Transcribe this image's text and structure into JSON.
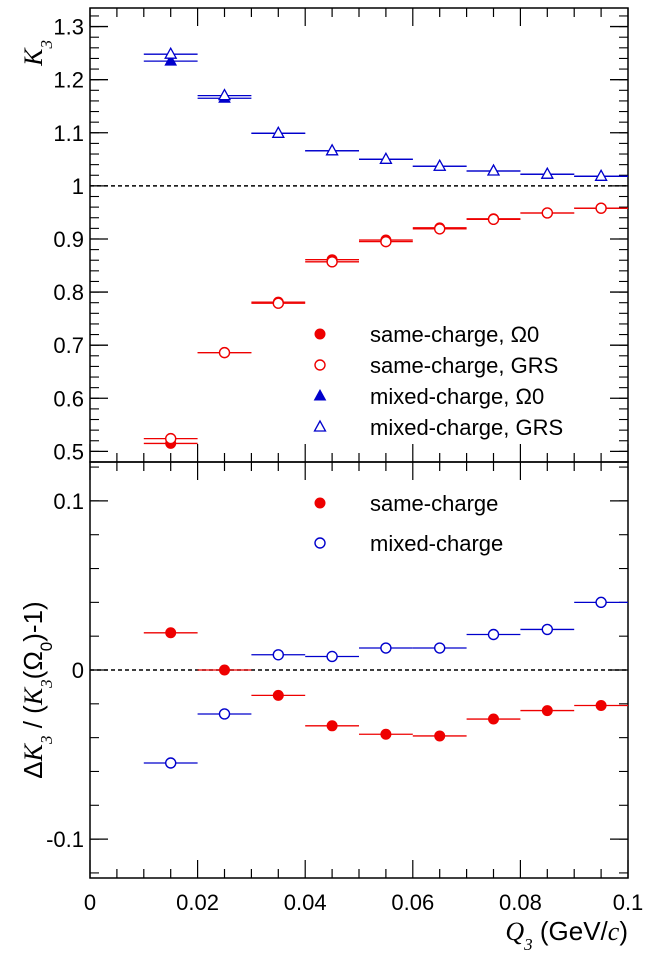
{
  "chart_data": [
    {
      "type": "scatter",
      "ylabel": "K3",
      "ylim": [
        0.48,
        1.335
      ],
      "xlim": [
        0,
        0.1
      ],
      "yticks": [
        0.5,
        0.6,
        0.7,
        0.8,
        0.9,
        1,
        1.1,
        1.2,
        1.3
      ],
      "ytick_labels": [
        "0.5",
        "0.6",
        "0.7",
        "0.8",
        "0.9",
        "1",
        "1.1",
        "1.2",
        "1.3"
      ],
      "reference_line": 1,
      "legend_position": "bottom-right",
      "x": [
        0.015,
        0.025,
        0.035,
        0.045,
        0.055,
        0.065,
        0.075,
        0.085,
        0.095
      ],
      "x_err": 0.005,
      "series": [
        {
          "name": "same-charge, Ω0",
          "marker": "filled-circle",
          "color": "#ee0000",
          "values": [
            0.515,
            0.686,
            0.781,
            0.861,
            0.898,
            0.921,
            0.938,
            0.949,
            0.958
          ]
        },
        {
          "name": "same-charge, GRS",
          "marker": "open-circle",
          "color": "#ee0000",
          "values": [
            0.524,
            0.686,
            0.779,
            0.857,
            0.895,
            0.919,
            0.937,
            0.949,
            0.958
          ]
        },
        {
          "name": "mixed-charge, Ω0",
          "marker": "filled-triangle",
          "color": "#0000cc",
          "values": [
            1.235,
            1.165,
            1.099,
            1.066,
            1.05,
            1.037,
            1.028,
            1.022,
            1.018
          ]
        },
        {
          "name": "mixed-charge, GRS",
          "marker": "open-triangle",
          "color": "#0000cc",
          "values": [
            1.248,
            1.17,
            1.099,
            1.066,
            1.05,
            1.037,
            1.028,
            1.022,
            1.018
          ]
        }
      ]
    },
    {
      "type": "scatter",
      "ylabel": "ΔK3 / (K3(Ω0)-1)",
      "xlabel": "Q3 (GeV/c)",
      "ylim": [
        -0.123,
        0.123
      ],
      "xlim": [
        0,
        0.1
      ],
      "yticks": [
        -0.1,
        0,
        0.1
      ],
      "ytick_labels": [
        "-0.1",
        "0",
        "0.1"
      ],
      "xticks": [
        0,
        0.02,
        0.04,
        0.06,
        0.08,
        0.1
      ],
      "xtick_labels": [
        "0",
        "0.02",
        "0.04",
        "0.06",
        "0.08",
        "0.1"
      ],
      "reference_line": 0,
      "legend_position": "top-right",
      "x": [
        0.015,
        0.025,
        0.035,
        0.045,
        0.055,
        0.065,
        0.075,
        0.085,
        0.095
      ],
      "x_err": 0.005,
      "series": [
        {
          "name": "same-charge",
          "marker": "filled-circle",
          "color": "#ee0000",
          "values": [
            0.022,
            0.0,
            -0.015,
            -0.033,
            -0.038,
            -0.039,
            -0.029,
            -0.024,
            -0.021
          ]
        },
        {
          "name": "mixed-charge",
          "marker": "open-circle",
          "color": "#0000cc",
          "values": [
            -0.055,
            -0.026,
            0.009,
            0.008,
            0.013,
            0.013,
            0.021,
            0.024,
            0.04
          ]
        }
      ]
    }
  ]
}
